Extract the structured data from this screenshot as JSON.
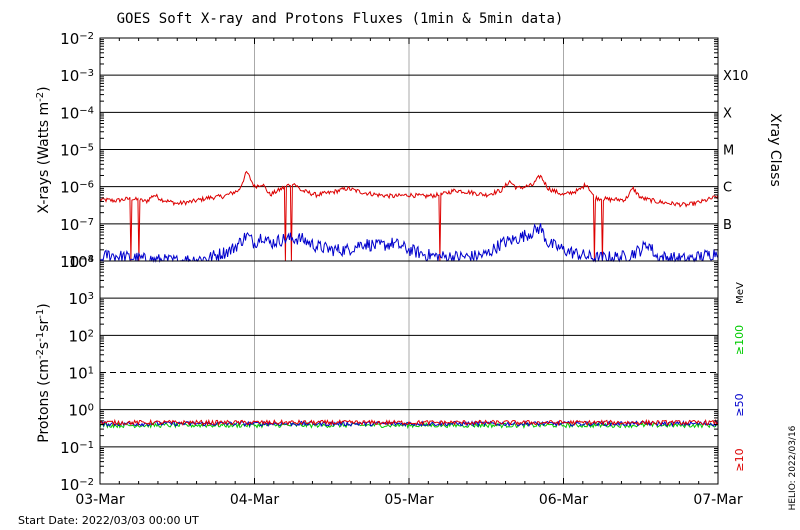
{
  "title": "GOES Soft X-ray and Protons Fluxes   (1min & 5min data)",
  "footer": {
    "start_date": "Start Date: 2022/03/03 00:00 UT",
    "helio": "HELIO: 2022/03/16"
  },
  "chart_data": [
    {
      "type": "line",
      "panel": "xray",
      "ylabel_base": "X-rays (Watts m",
      "ylabel_sup": "-2",
      "ylabel_end": ")",
      "yscale": "log",
      "ylim_exp": [
        -8,
        -2
      ],
      "ytick_exponents": [
        -2,
        -3,
        -4,
        -5,
        -6,
        -7,
        -8
      ],
      "right_axis_label": "Xray Class",
      "class_labels": [
        {
          "label": "X10",
          "exp": -3
        },
        {
          "label": "X",
          "exp": -4
        },
        {
          "label": "M",
          "exp": -5
        },
        {
          "label": "C",
          "exp": -6
        },
        {
          "label": "B",
          "exp": -7
        }
      ],
      "xlim_days": [
        0,
        4
      ],
      "vertical_gridlines_days": [
        1,
        2,
        3
      ],
      "series": [
        {
          "name": "",
          "color": "#dd0000",
          "points": [
            [
              0.0,
              4.5e-07
            ],
            [
              0.1,
              4.2e-07
            ],
            [
              0.2,
              4.8e-07
            ],
            [
              0.3,
              4e-07
            ],
            [
              0.35,
              6e-07
            ],
            [
              0.4,
              4.5e-07
            ],
            [
              0.5,
              3.5e-07
            ],
            [
              0.6,
              4e-07
            ],
            [
              0.7,
              5e-07
            ],
            [
              0.8,
              5.5e-07
            ],
            [
              0.9,
              8e-07
            ],
            [
              0.95,
              2.5e-06
            ],
            [
              1.0,
              1e-06
            ],
            [
              1.05,
              1.2e-06
            ],
            [
              1.1,
              6e-07
            ],
            [
              1.2,
              1e-06
            ],
            [
              1.25,
              1.3e-06
            ],
            [
              1.3,
              8e-07
            ],
            [
              1.4,
              6e-07
            ],
            [
              1.5,
              7e-07
            ],
            [
              1.6,
              9e-07
            ],
            [
              1.7,
              7e-07
            ],
            [
              1.8,
              6e-07
            ],
            [
              1.9,
              5.5e-07
            ],
            [
              2.0,
              6e-07
            ],
            [
              2.1,
              5.5e-07
            ],
            [
              2.2,
              6e-07
            ],
            [
              2.3,
              8e-07
            ],
            [
              2.4,
              7e-07
            ],
            [
              2.5,
              6e-07
            ],
            [
              2.6,
              8e-07
            ],
            [
              2.65,
              1.4e-06
            ],
            [
              2.7,
              9e-07
            ],
            [
              2.8,
              1.1e-06
            ],
            [
              2.85,
              2e-06
            ],
            [
              2.9,
              9e-07
            ],
            [
              3.0,
              6e-07
            ],
            [
              3.1,
              8e-07
            ],
            [
              3.15,
              1.2e-06
            ],
            [
              3.2,
              5e-07
            ],
            [
              3.3,
              4.5e-07
            ],
            [
              3.4,
              4.5e-07
            ],
            [
              3.45,
              9e-07
            ],
            [
              3.5,
              5e-07
            ],
            [
              3.6,
              4e-07
            ],
            [
              3.7,
              3.5e-07
            ],
            [
              3.8,
              3.2e-07
            ],
            [
              3.9,
              4e-07
            ],
            [
              4.0,
              5.5e-07
            ]
          ],
          "dropouts_days": [
            0.2,
            0.25,
            1.2,
            1.24,
            2.2,
            3.2,
            3.25
          ]
        },
        {
          "name": "",
          "color": "#0000cc",
          "points": [
            [
              0.0,
              1e-08
            ],
            [
              0.05,
              1.5e-08
            ],
            [
              0.15,
              1.3e-08
            ],
            [
              0.3,
              1.1e-08
            ],
            [
              0.5,
              1e-08
            ],
            [
              0.7,
              1.2e-08
            ],
            [
              0.85,
              2e-08
            ],
            [
              0.9,
              3e-08
            ],
            [
              0.95,
              5e-08
            ],
            [
              1.0,
              3e-08
            ],
            [
              1.05,
              5e-08
            ],
            [
              1.1,
              3e-08
            ],
            [
              1.2,
              4e-08
            ],
            [
              1.3,
              4e-08
            ],
            [
              1.4,
              2.5e-08
            ],
            [
              1.5,
              2e-08
            ],
            [
              1.6,
              2e-08
            ],
            [
              1.7,
              3e-08
            ],
            [
              1.8,
              2.5e-08
            ],
            [
              1.9,
              3e-08
            ],
            [
              2.0,
              2e-08
            ],
            [
              2.1,
              1.5e-08
            ],
            [
              2.2,
              1.3e-08
            ],
            [
              2.4,
              1.3e-08
            ],
            [
              2.5,
              1.5e-08
            ],
            [
              2.6,
              3e-08
            ],
            [
              2.7,
              4e-08
            ],
            [
              2.8,
              6e-08
            ],
            [
              2.85,
              8e-08
            ],
            [
              2.9,
              3e-08
            ],
            [
              3.0,
              2e-08
            ],
            [
              3.1,
              1.5e-08
            ],
            [
              3.2,
              1.2e-08
            ],
            [
              3.4,
              1.3e-08
            ],
            [
              3.5,
              2e-08
            ],
            [
              3.55,
              3e-08
            ],
            [
              3.6,
              1.3e-08
            ],
            [
              3.8,
              1.1e-08
            ],
            [
              3.95,
              1.5e-08
            ],
            [
              4.0,
              1.8e-08
            ]
          ]
        }
      ]
    },
    {
      "type": "line",
      "panel": "protons",
      "ylabel_base": "Protons (cm",
      "ylabel_sup1": "-2",
      "ylabel_mid": "s",
      "ylabel_sup2": "-1",
      "ylabel_mid2": "sr",
      "ylabel_sup3": "-1",
      "ylabel_end": ")",
      "yscale": "log",
      "ylim_exp": [
        -2,
        4
      ],
      "ytick_exponents": [
        4,
        3,
        2,
        1,
        0,
        -1,
        -2
      ],
      "dashed_threshold_exp": 1,
      "xlim_days": [
        0,
        4
      ],
      "xtick_labels": [
        "03-Mar",
        "04-Mar",
        "05-Mar",
        "06-Mar",
        "07-Mar"
      ],
      "right_unit_label": "MeV",
      "series": [
        {
          "name": "≥100",
          "color": "#00cc00",
          "level": 0.38
        },
        {
          "name": "≥50",
          "color": "#0000cc",
          "level": 0.42
        },
        {
          "name": "≥10",
          "color": "#dd0000",
          "level": 0.45
        }
      ]
    }
  ]
}
